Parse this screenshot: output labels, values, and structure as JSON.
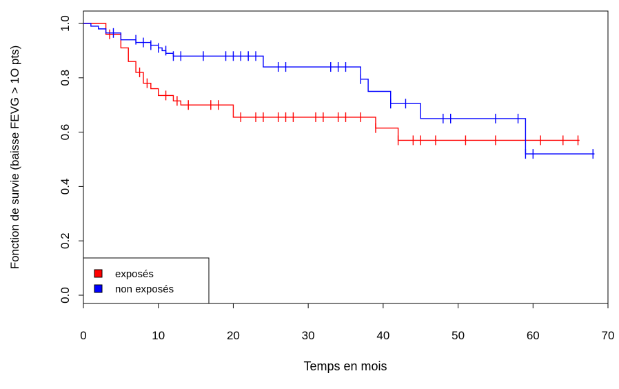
{
  "chart_data": {
    "type": "line",
    "subtype": "kaplan-meier-survival",
    "title": "",
    "xlabel": "Temps en mois",
    "ylabel": "Fonction de survie (baisse FEVG > 1O pts)",
    "xlim": [
      0,
      70
    ],
    "ylim": [
      0,
      1
    ],
    "x_ticks": [
      0,
      10,
      20,
      30,
      40,
      50,
      60,
      70
    ],
    "y_ticks": [
      0.0,
      0.2,
      0.4,
      0.6,
      0.8,
      1.0
    ],
    "x_tick_labels": [
      "0",
      "10",
      "20",
      "30",
      "40",
      "50",
      "60",
      "70"
    ],
    "y_tick_labels": [
      "0.0",
      "0.2",
      "0.4",
      "0.6",
      "0.8",
      "1.0"
    ],
    "grid": false,
    "legend_position": "bottom-left",
    "series": [
      {
        "name": "exposés",
        "color": "#ff0000",
        "steps": [
          [
            0,
            1.0
          ],
          [
            3,
            0.96
          ],
          [
            5,
            0.91
          ],
          [
            6,
            0.86
          ],
          [
            7,
            0.82
          ],
          [
            8,
            0.78
          ],
          [
            9,
            0.76
          ],
          [
            10,
            0.735
          ],
          [
            12,
            0.715
          ],
          [
            13,
            0.7
          ],
          [
            20,
            0.655
          ],
          [
            39,
            0.615
          ],
          [
            42,
            0.57
          ],
          [
            66.2,
            0.57
          ]
        ],
        "censored": [
          [
            3.5,
            0.96
          ],
          [
            7.5,
            0.82
          ],
          [
            8.5,
            0.78
          ],
          [
            11,
            0.735
          ],
          [
            12.5,
            0.715
          ],
          [
            14,
            0.7
          ],
          [
            17,
            0.7
          ],
          [
            18,
            0.7
          ],
          [
            21,
            0.655
          ],
          [
            23,
            0.655
          ],
          [
            24,
            0.655
          ],
          [
            26,
            0.655
          ],
          [
            27,
            0.655
          ],
          [
            28,
            0.655
          ],
          [
            31,
            0.655
          ],
          [
            32,
            0.655
          ],
          [
            34,
            0.655
          ],
          [
            35,
            0.655
          ],
          [
            37,
            0.655
          ],
          [
            39,
            0.615
          ],
          [
            42,
            0.57
          ],
          [
            44,
            0.57
          ],
          [
            45,
            0.57
          ],
          [
            47,
            0.57
          ],
          [
            51,
            0.57
          ],
          [
            55,
            0.57
          ],
          [
            61,
            0.57
          ],
          [
            64,
            0.57
          ],
          [
            66,
            0.57
          ]
        ]
      },
      {
        "name": "non exposés",
        "color": "#0000ff",
        "steps": [
          [
            0,
            1.0
          ],
          [
            1,
            0.99
          ],
          [
            2,
            0.98
          ],
          [
            3,
            0.965
          ],
          [
            5,
            0.94
          ],
          [
            7,
            0.93
          ],
          [
            9,
            0.92
          ],
          [
            10,
            0.91
          ],
          [
            10.5,
            0.9
          ],
          [
            11,
            0.89
          ],
          [
            12,
            0.88
          ],
          [
            24,
            0.84
          ],
          [
            37,
            0.795
          ],
          [
            38,
            0.75
          ],
          [
            41,
            0.705
          ],
          [
            45,
            0.65
          ],
          [
            59,
            0.52
          ],
          [
            68.2,
            0.52
          ]
        ],
        "censored": [
          [
            4,
            0.965
          ],
          [
            7,
            0.94
          ],
          [
            8,
            0.93
          ],
          [
            9,
            0.92
          ],
          [
            10,
            0.91
          ],
          [
            11,
            0.9
          ],
          [
            12,
            0.88
          ],
          [
            13,
            0.88
          ],
          [
            16,
            0.88
          ],
          [
            19,
            0.88
          ],
          [
            20,
            0.88
          ],
          [
            21,
            0.88
          ],
          [
            22,
            0.88
          ],
          [
            23,
            0.88
          ],
          [
            26,
            0.84
          ],
          [
            27,
            0.84
          ],
          [
            33,
            0.84
          ],
          [
            34,
            0.84
          ],
          [
            35,
            0.84
          ],
          [
            37,
            0.795
          ],
          [
            41,
            0.705
          ],
          [
            43,
            0.705
          ],
          [
            48,
            0.65
          ],
          [
            49,
            0.65
          ],
          [
            55,
            0.65
          ],
          [
            58,
            0.65
          ],
          [
            59,
            0.52
          ],
          [
            60,
            0.52
          ],
          [
            68,
            0.52
          ]
        ]
      }
    ]
  }
}
